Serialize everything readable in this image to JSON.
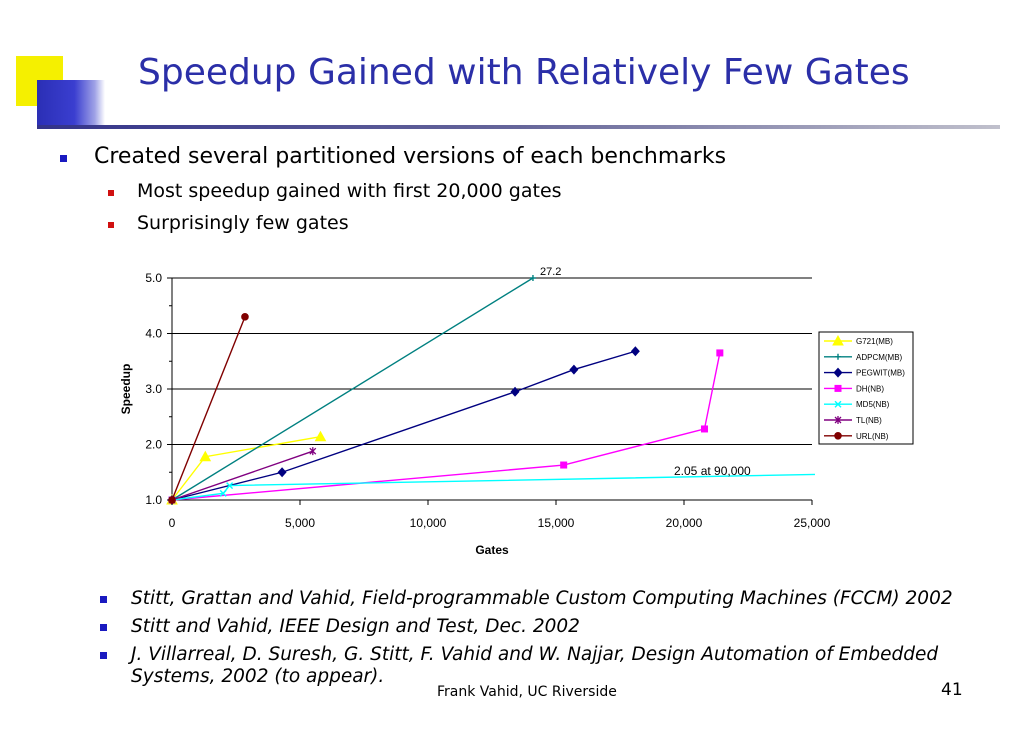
{
  "slide": {
    "title": "Speedup Gained with Relatively Few Gates",
    "bullet_main": "Created several partitioned versions of each benchmarks",
    "sub_bullets": [
      "Most speedup gained with first 20,000 gates",
      "Surprisingly few gates"
    ],
    "references": [
      "Stitt, Grattan and Vahid, Field-programmable Custom Computing Machines (FCCM) 2002",
      "Stitt and Vahid, IEEE Design and Test, Dec. 2002",
      "J. Villarreal, D. Suresh, G. Stitt, F. Vahid and W. Najjar, Design Automation of Embedded Systems, 2002 (to appear)."
    ],
    "footer_author": "Frank Vahid, UC Riverside",
    "page_number": "41",
    "colors": {
      "title": "#2b2fa8",
      "accent_yellow": "#f5f000",
      "accent_blue": "#2b2fb5"
    }
  },
  "chart_data": {
    "type": "line",
    "xlabel": "Gates",
    "ylabel": "Speedup",
    "xlim": [
      0,
      25000
    ],
    "ylim": [
      1.0,
      5.0
    ],
    "x_ticks": [
      "0",
      "5,000",
      "10,000",
      "15,000",
      "20,000",
      "25,000"
    ],
    "y_ticks": [
      "1.0",
      "2.0",
      "3.0",
      "4.0",
      "5.0"
    ],
    "grid": "horizontal major",
    "legend_position": "right",
    "series": [
      {
        "name": "G721(MB)",
        "color": "#ffff00",
        "marker": "triangle",
        "points": [
          [
            0,
            1.0
          ],
          [
            1300,
            1.78
          ],
          [
            5800,
            2.14
          ]
        ]
      },
      {
        "name": "ADPCM(MB)",
        "color": "#008080",
        "marker": "plus",
        "points": [
          [
            0,
            1.0
          ],
          [
            14100,
            5.0
          ]
        ]
      },
      {
        "name": "PEGWIT(MB)",
        "color": "#000080",
        "marker": "diamond",
        "points": [
          [
            0,
            1.0
          ],
          [
            4300,
            1.5
          ],
          [
            13400,
            2.95
          ],
          [
            15700,
            3.35
          ],
          [
            18100,
            3.68
          ]
        ]
      },
      {
        "name": "DH(NB)",
        "color": "#ff00ff",
        "marker": "square",
        "points": [
          [
            0,
            1.0
          ],
          [
            15300,
            1.63
          ],
          [
            20800,
            2.28
          ],
          [
            21400,
            3.65
          ]
        ]
      },
      {
        "name": "MD5(NB)",
        "color": "#00ffff",
        "marker": "x",
        "points": [
          [
            0,
            1.0
          ],
          [
            2000,
            1.12
          ],
          [
            2250,
            1.26
          ],
          [
            25200,
            1.46
          ]
        ]
      },
      {
        "name": "TL(NB)",
        "color": "#800080",
        "marker": "star",
        "points": [
          [
            0,
            1.0
          ],
          [
            5500,
            1.88
          ]
        ]
      },
      {
        "name": "URL(NB)",
        "color": "#800000",
        "marker": "circle",
        "points": [
          [
            0,
            1.0
          ],
          [
            2850,
            4.3
          ]
        ]
      }
    ],
    "annotations": [
      "27.2",
      "2.05 at 90,000"
    ]
  }
}
